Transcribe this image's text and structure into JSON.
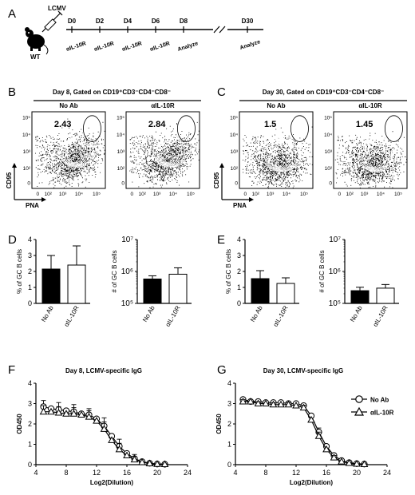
{
  "panel_a": {
    "letter": "A",
    "lcmv_label": "LCMV",
    "mouse_label": "WT",
    "days": [
      "D0",
      "D2",
      "D4",
      "D6",
      "D8",
      "D30"
    ],
    "treatments": [
      "αIL-10R",
      "αIL-10R",
      "αIL-10R",
      "αIL-10R"
    ],
    "analyze_d8": "Analyze",
    "analyze_d30": "Analyze"
  },
  "panel_b": {
    "letter": "B",
    "title": "Day 8, Gated on CD19⁺CD3⁻CD4⁻CD8⁻",
    "plots": [
      {
        "label": "No Ab",
        "gate_value": "2.43"
      },
      {
        "label": "αIL-10R",
        "gate_value": "2.84"
      }
    ]
  },
  "panel_c": {
    "letter": "C",
    "title": "Day 30, Gated on CD19⁺CD3⁻CD4⁻CD8⁻",
    "plots": [
      {
        "label": "No Ab",
        "gate_value": "1.5"
      },
      {
        "label": "αIL-10R",
        "gate_value": "1.45"
      }
    ]
  },
  "flow_axes": {
    "y_label": "CD95",
    "x_label": "PNA",
    "y_ticks": [
      "10⁵",
      "10⁴",
      "10³",
      "10²",
      "0"
    ],
    "x_ticks": [
      "0",
      "10²",
      "10³",
      "10⁴",
      "10⁵"
    ]
  },
  "panel_d": {
    "letter": "D"
  },
  "panel_e": {
    "letter": "E"
  },
  "panel_f": {
    "letter": "F",
    "title": "Day 8, LCMV-specific IgG"
  },
  "panel_g": {
    "letter": "G",
    "title": "Day 30, LCMV-specific IgG"
  },
  "elisa_legend": [
    "No Ab",
    "αIL-10R"
  ],
  "colors": {
    "no_ab_bar": "#000000",
    "il10r_bar": "#ffffff"
  },
  "chart_data": [
    {
      "id": "D-percent",
      "type": "bar",
      "categories": [
        "No Ab",
        "αIL-10R"
      ],
      "values": [
        2.15,
        2.4
      ],
      "errors": [
        0.85,
        1.2
      ],
      "ylabel": "% of GC B cells",
      "ylim": [
        0,
        4
      ],
      "yticks": [
        "0",
        "1",
        "2",
        "3",
        "4"
      ],
      "scale": "linear"
    },
    {
      "id": "D-number",
      "type": "bar",
      "categories": [
        "No Ab",
        "αIL-10R"
      ],
      "values": [
        580000,
        820000
      ],
      "errors": [
        150000,
        480000
      ],
      "ylabel": "# of GC B cells",
      "ylim": [
        100000,
        10000000
      ],
      "yticks": [
        "10⁵",
        "10⁶",
        "10⁷"
      ],
      "scale": "log"
    },
    {
      "id": "E-percent",
      "type": "bar",
      "categories": [
        "No Ab",
        "αIL-10R"
      ],
      "values": [
        1.55,
        1.25
      ],
      "errors": [
        0.5,
        0.35
      ],
      "ylabel": "% of GC B cells",
      "ylim": [
        0,
        4
      ],
      "yticks": [
        "0",
        "1",
        "2",
        "3",
        "4"
      ],
      "scale": "linear"
    },
    {
      "id": "E-number",
      "type": "bar",
      "categories": [
        "No Ab",
        "αIL-10R"
      ],
      "values": [
        250000,
        300000
      ],
      "errors": [
        70000,
        90000
      ],
      "ylabel": "# of GC B cells",
      "ylim": [
        100000,
        10000000
      ],
      "yticks": [
        "10⁵",
        "10⁶",
        "10⁷"
      ],
      "scale": "log"
    },
    {
      "id": "F",
      "type": "line",
      "title": "Day 8, LCMV-specific IgG",
      "xlabel": "Log2(Dilution)",
      "ylabel": "OD450",
      "xlim": [
        4,
        24
      ],
      "ylim": [
        0,
        4
      ],
      "xticks": [
        "4",
        "8",
        "12",
        "16",
        "20",
        "24"
      ],
      "yticks": [
        "0",
        "1",
        "2",
        "3",
        "4"
      ],
      "x": [
        5,
        6,
        7,
        8,
        9,
        10,
        11,
        12,
        13,
        14,
        15,
        16,
        17,
        18,
        19,
        20,
        21
      ],
      "series": [
        {
          "name": "No Ab",
          "marker": "circle",
          "values": [
            2.85,
            2.75,
            2.7,
            2.65,
            2.6,
            2.5,
            2.45,
            2.25,
            1.9,
            1.4,
            0.9,
            0.55,
            0.3,
            0.15,
            0.07,
            0.03,
            0.02
          ],
          "errors": [
            0.3,
            0.35,
            0.35,
            0.35,
            0.35,
            0.35,
            0.3,
            0.35,
            0.4,
            0.4,
            0.35,
            0.3,
            0.2,
            0.1,
            0.05,
            0.03,
            0.02
          ]
        },
        {
          "name": "αIL-10R",
          "marker": "triangle",
          "values": [
            2.6,
            2.6,
            2.55,
            2.5,
            2.5,
            2.45,
            2.35,
            2.15,
            1.75,
            1.2,
            0.75,
            0.45,
            0.25,
            0.12,
            0.06,
            0.03,
            0.02
          ],
          "errors": [
            0.3,
            0.3,
            0.3,
            0.3,
            0.3,
            0.3,
            0.3,
            0.3,
            0.35,
            0.35,
            0.3,
            0.25,
            0.15,
            0.1,
            0.05,
            0.03,
            0.02
          ]
        }
      ]
    },
    {
      "id": "G",
      "type": "line",
      "title": "Day 30, LCMV-specific IgG",
      "xlabel": "Log2(Dilution)",
      "ylabel": "OD450",
      "xlim": [
        4,
        24
      ],
      "ylim": [
        0,
        4
      ],
      "xticks": [
        "4",
        "8",
        "12",
        "16",
        "20",
        "24"
      ],
      "yticks": [
        "0",
        "1",
        "2",
        "3",
        "4"
      ],
      "x": [
        5,
        6,
        7,
        8,
        9,
        10,
        11,
        12,
        13,
        14,
        15,
        16,
        17,
        18,
        19,
        20,
        21
      ],
      "series": [
        {
          "name": "No Ab",
          "marker": "circle",
          "values": [
            3.2,
            3.1,
            3.1,
            3.05,
            3.05,
            3.05,
            3.0,
            3.0,
            2.9,
            2.4,
            1.6,
            0.9,
            0.45,
            0.2,
            0.1,
            0.05,
            0.03
          ],
          "errors": [
            0.08,
            0.08,
            0.08,
            0.08,
            0.08,
            0.08,
            0.08,
            0.08,
            0.1,
            0.15,
            0.2,
            0.15,
            0.1,
            0.05,
            0.03,
            0.02,
            0.02
          ]
        },
        {
          "name": "αIL-10R",
          "marker": "triangle",
          "values": [
            3.1,
            3.1,
            3.0,
            3.0,
            2.95,
            2.95,
            2.95,
            2.9,
            2.8,
            2.2,
            1.4,
            0.75,
            0.35,
            0.15,
            0.08,
            0.04,
            0.02
          ],
          "errors": [
            0.1,
            0.1,
            0.1,
            0.1,
            0.1,
            0.1,
            0.1,
            0.1,
            0.12,
            0.15,
            0.2,
            0.15,
            0.1,
            0.05,
            0.03,
            0.02,
            0.02
          ]
        }
      ]
    }
  ]
}
